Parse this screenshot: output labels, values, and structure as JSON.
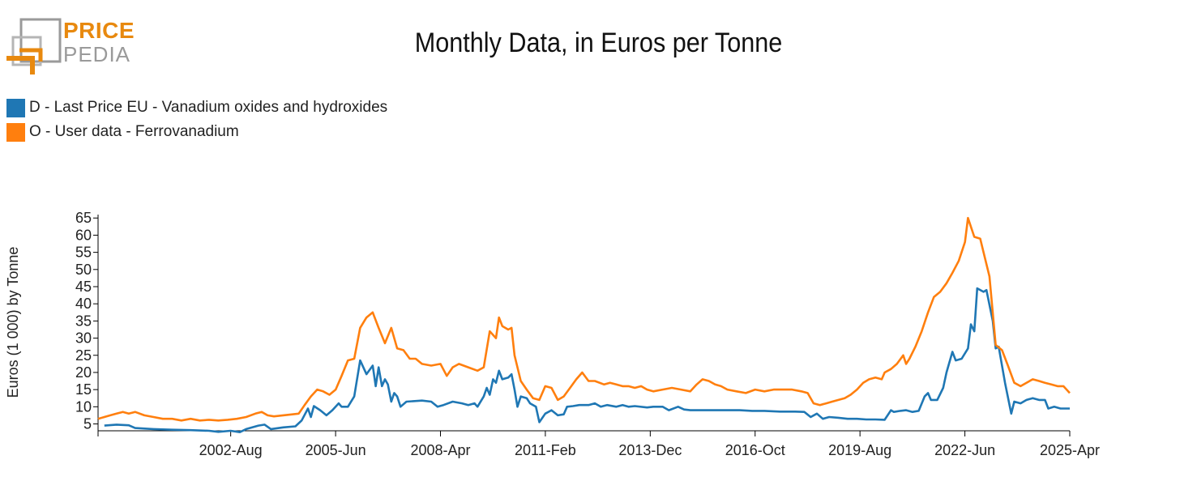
{
  "logo": {
    "line1": "PRICE",
    "line2": "PEDIA"
  },
  "colors": {
    "series_d": "#1f77b4",
    "series_o": "#ff7f0e",
    "logo_orange": "#e8890f",
    "logo_gray": "#9a9a9a"
  },
  "chart_data": {
    "type": "line",
    "title": "Monthly Data, in Euros per Tonne",
    "xlabel": "",
    "ylabel": "Euros (1 000) by Tonne",
    "ylim": [
      3,
      66
    ],
    "yticks": [
      5,
      10,
      15,
      20,
      25,
      30,
      35,
      40,
      45,
      50,
      55,
      60,
      65
    ],
    "xrange": [
      1999,
      2025.25
    ],
    "xticks": [
      {
        "label": "2002-Aug",
        "x": 2002.583
      },
      {
        "label": "2005-Jun",
        "x": 2005.417
      },
      {
        "label": "2008-Apr",
        "x": 2008.25
      },
      {
        "label": "2011-Feb",
        "x": 2011.083
      },
      {
        "label": "2013-Dec",
        "x": 2013.917
      },
      {
        "label": "2016-Oct",
        "x": 2016.75
      },
      {
        "label": "2019-Aug",
        "x": 2019.583
      },
      {
        "label": "2022-Jun",
        "x": 2022.417
      },
      {
        "label": "2025-Apr",
        "x": 2025.25
      }
    ],
    "legend_position": "top-left",
    "series": [
      {
        "name": "D - Last Price EU - Vanadium oxides and hydroxides",
        "color": "#1f77b4",
        "points": [
          [
            1999.17,
            4.5
          ],
          [
            1999.5,
            4.8
          ],
          [
            1999.83,
            4.6
          ],
          [
            2000.0,
            3.8
          ],
          [
            2000.5,
            3.5
          ],
          [
            2001.0,
            3.3
          ],
          [
            2001.5,
            3.2
          ],
          [
            2002.0,
            3.0
          ],
          [
            2002.25,
            2.7
          ],
          [
            2002.58,
            3.0
          ],
          [
            2002.83,
            2.6
          ],
          [
            2003.0,
            3.5
          ],
          [
            2003.33,
            4.5
          ],
          [
            2003.5,
            4.8
          ],
          [
            2003.67,
            3.5
          ],
          [
            2004.0,
            4.0
          ],
          [
            2004.33,
            4.3
          ],
          [
            2004.5,
            6.0
          ],
          [
            2004.67,
            9.5
          ],
          [
            2004.75,
            7.0
          ],
          [
            2004.83,
            10.2
          ],
          [
            2005.0,
            9.0
          ],
          [
            2005.17,
            7.5
          ],
          [
            2005.33,
            9.0
          ],
          [
            2005.5,
            11.0
          ],
          [
            2005.58,
            10.0
          ],
          [
            2005.75,
            10.0
          ],
          [
            2005.92,
            13.0
          ],
          [
            2006.08,
            23.5
          ],
          [
            2006.25,
            19.5
          ],
          [
            2006.42,
            22.0
          ],
          [
            2006.5,
            16.0
          ],
          [
            2006.58,
            21.5
          ],
          [
            2006.67,
            16.0
          ],
          [
            2006.75,
            18.0
          ],
          [
            2006.83,
            16.5
          ],
          [
            2006.92,
            11.5
          ],
          [
            2007.0,
            14.0
          ],
          [
            2007.08,
            13.0
          ],
          [
            2007.17,
            10.0
          ],
          [
            2007.33,
            11.5
          ],
          [
            2007.75,
            11.8
          ],
          [
            2008.0,
            11.5
          ],
          [
            2008.17,
            10.0
          ],
          [
            2008.33,
            10.5
          ],
          [
            2008.58,
            11.5
          ],
          [
            2008.83,
            11.0
          ],
          [
            2009.0,
            10.5
          ],
          [
            2009.17,
            11.0
          ],
          [
            2009.25,
            10.0
          ],
          [
            2009.42,
            13.0
          ],
          [
            2009.5,
            15.5
          ],
          [
            2009.58,
            13.5
          ],
          [
            2009.67,
            18.0
          ],
          [
            2009.75,
            17.0
          ],
          [
            2009.83,
            20.5
          ],
          [
            2009.92,
            18.0
          ],
          [
            2010.08,
            18.5
          ],
          [
            2010.17,
            19.5
          ],
          [
            2010.25,
            15.0
          ],
          [
            2010.33,
            10.0
          ],
          [
            2010.42,
            13.0
          ],
          [
            2010.58,
            12.5
          ],
          [
            2010.67,
            11.0
          ],
          [
            2010.83,
            10.0
          ],
          [
            2010.92,
            5.5
          ],
          [
            2011.08,
            8.0
          ],
          [
            2011.25,
            9.0
          ],
          [
            2011.42,
            7.5
          ],
          [
            2011.58,
            7.8
          ],
          [
            2011.67,
            10.0
          ],
          [
            2011.83,
            10.2
          ],
          [
            2012.0,
            10.5
          ],
          [
            2012.25,
            10.5
          ],
          [
            2012.42,
            11.0
          ],
          [
            2012.58,
            10.0
          ],
          [
            2012.75,
            10.5
          ],
          [
            2013.0,
            10.0
          ],
          [
            2013.17,
            10.5
          ],
          [
            2013.33,
            10.0
          ],
          [
            2013.5,
            10.2
          ],
          [
            2013.83,
            9.8
          ],
          [
            2014.0,
            10.0
          ],
          [
            2014.25,
            10.0
          ],
          [
            2014.42,
            9.0
          ],
          [
            2014.67,
            10.0
          ],
          [
            2014.83,
            9.2
          ],
          [
            2015.0,
            9.0
          ],
          [
            2015.5,
            9.0
          ],
          [
            2016.0,
            9.0
          ],
          [
            2016.33,
            9.0
          ],
          [
            2016.67,
            8.8
          ],
          [
            2017.0,
            8.8
          ],
          [
            2017.42,
            8.6
          ],
          [
            2017.83,
            8.6
          ],
          [
            2018.08,
            8.5
          ],
          [
            2018.25,
            7.0
          ],
          [
            2018.42,
            8.0
          ],
          [
            2018.58,
            6.5
          ],
          [
            2018.75,
            7.0
          ],
          [
            2019.0,
            6.8
          ],
          [
            2019.25,
            6.5
          ],
          [
            2019.5,
            6.5
          ],
          [
            2019.75,
            6.3
          ],
          [
            2020.0,
            6.3
          ],
          [
            2020.25,
            6.2
          ],
          [
            2020.42,
            9.0
          ],
          [
            2020.5,
            8.5
          ],
          [
            2020.67,
            8.8
          ],
          [
            2020.83,
            9.0
          ],
          [
            2021.0,
            8.5
          ],
          [
            2021.17,
            8.8
          ],
          [
            2021.33,
            13.0
          ],
          [
            2021.42,
            14.0
          ],
          [
            2021.5,
            12.0
          ],
          [
            2021.67,
            12.0
          ],
          [
            2021.83,
            15.5
          ],
          [
            2021.92,
            20.0
          ],
          [
            2022.08,
            26.0
          ],
          [
            2022.17,
            23.5
          ],
          [
            2022.33,
            24.0
          ],
          [
            2022.5,
            27.0
          ],
          [
            2022.58,
            34.0
          ],
          [
            2022.67,
            32.0
          ],
          [
            2022.75,
            44.5
          ],
          [
            2022.92,
            43.5
          ],
          [
            2023.0,
            44.0
          ],
          [
            2023.17,
            35.0
          ],
          [
            2023.25,
            27.0
          ],
          [
            2023.33,
            27.5
          ],
          [
            2023.5,
            17.0
          ],
          [
            2023.67,
            8.0
          ],
          [
            2023.75,
            11.5
          ],
          [
            2023.92,
            11.0
          ],
          [
            2024.08,
            12.0
          ],
          [
            2024.25,
            12.5
          ],
          [
            2024.42,
            12.0
          ],
          [
            2024.58,
            12.0
          ],
          [
            2024.67,
            9.5
          ],
          [
            2024.83,
            10.0
          ],
          [
            2025.0,
            9.5
          ],
          [
            2025.25,
            9.5
          ]
        ]
      },
      {
        "name": "O - User data - Ferrovanadium",
        "color": "#ff7f0e",
        "points": [
          [
            1999.0,
            6.5
          ],
          [
            1999.33,
            7.5
          ],
          [
            1999.5,
            8.0
          ],
          [
            1999.67,
            8.5
          ],
          [
            1999.83,
            8.0
          ],
          [
            2000.0,
            8.5
          ],
          [
            2000.25,
            7.5
          ],
          [
            2000.5,
            7.0
          ],
          [
            2000.75,
            6.5
          ],
          [
            2001.0,
            6.5
          ],
          [
            2001.25,
            6.0
          ],
          [
            2001.5,
            6.5
          ],
          [
            2001.75,
            6.0
          ],
          [
            2002.0,
            6.2
          ],
          [
            2002.25,
            6.0
          ],
          [
            2002.5,
            6.2
          ],
          [
            2002.75,
            6.5
          ],
          [
            2003.0,
            7.0
          ],
          [
            2003.25,
            8.0
          ],
          [
            2003.42,
            8.5
          ],
          [
            2003.58,
            7.5
          ],
          [
            2003.75,
            7.2
          ],
          [
            2004.0,
            7.5
          ],
          [
            2004.25,
            7.8
          ],
          [
            2004.42,
            8.0
          ],
          [
            2004.58,
            10.5
          ],
          [
            2004.75,
            13.0
          ],
          [
            2004.92,
            15.0
          ],
          [
            2005.08,
            14.5
          ],
          [
            2005.25,
            13.5
          ],
          [
            2005.42,
            15.0
          ],
          [
            2005.58,
            19.0
          ],
          [
            2005.75,
            23.5
          ],
          [
            2005.92,
            24.0
          ],
          [
            2006.08,
            33.0
          ],
          [
            2006.25,
            36.0
          ],
          [
            2006.42,
            37.5
          ],
          [
            2006.58,
            33.0
          ],
          [
            2006.75,
            28.5
          ],
          [
            2006.92,
            33.0
          ],
          [
            2007.08,
            27.0
          ],
          [
            2007.25,
            26.5
          ],
          [
            2007.42,
            24.0
          ],
          [
            2007.58,
            24.0
          ],
          [
            2007.75,
            22.5
          ],
          [
            2008.0,
            22.0
          ],
          [
            2008.25,
            22.5
          ],
          [
            2008.42,
            19.0
          ],
          [
            2008.58,
            21.5
          ],
          [
            2008.75,
            22.5
          ],
          [
            2009.0,
            21.5
          ],
          [
            2009.25,
            20.5
          ],
          [
            2009.42,
            21.5
          ],
          [
            2009.58,
            32.0
          ],
          [
            2009.75,
            30.0
          ],
          [
            2009.83,
            36.0
          ],
          [
            2009.92,
            33.5
          ],
          [
            2010.08,
            32.5
          ],
          [
            2010.17,
            33.0
          ],
          [
            2010.25,
            25.0
          ],
          [
            2010.42,
            17.5
          ],
          [
            2010.58,
            15.0
          ],
          [
            2010.75,
            12.5
          ],
          [
            2010.92,
            12.0
          ],
          [
            2011.08,
            16.0
          ],
          [
            2011.25,
            15.5
          ],
          [
            2011.42,
            12.0
          ],
          [
            2011.58,
            13.0
          ],
          [
            2011.75,
            15.5
          ],
          [
            2011.92,
            18.0
          ],
          [
            2012.08,
            20.0
          ],
          [
            2012.25,
            17.5
          ],
          [
            2012.42,
            17.5
          ],
          [
            2012.67,
            16.5
          ],
          [
            2012.83,
            17.0
          ],
          [
            2013.0,
            16.5
          ],
          [
            2013.17,
            16.0
          ],
          [
            2013.33,
            16.0
          ],
          [
            2013.5,
            15.5
          ],
          [
            2013.67,
            16.0
          ],
          [
            2013.83,
            15.0
          ],
          [
            2014.0,
            14.5
          ],
          [
            2014.25,
            15.0
          ],
          [
            2014.5,
            15.5
          ],
          [
            2014.75,
            15.0
          ],
          [
            2015.0,
            14.5
          ],
          [
            2015.17,
            16.5
          ],
          [
            2015.33,
            18.0
          ],
          [
            2015.5,
            17.5
          ],
          [
            2015.67,
            16.5
          ],
          [
            2015.83,
            16.0
          ],
          [
            2016.0,
            15.0
          ],
          [
            2016.25,
            14.5
          ],
          [
            2016.5,
            14.0
          ],
          [
            2016.75,
            15.0
          ],
          [
            2017.0,
            14.5
          ],
          [
            2017.25,
            15.0
          ],
          [
            2017.5,
            15.0
          ],
          [
            2017.75,
            15.0
          ],
          [
            2018.0,
            14.5
          ],
          [
            2018.17,
            14.0
          ],
          [
            2018.33,
            11.0
          ],
          [
            2018.5,
            10.5
          ],
          [
            2018.67,
            11.0
          ],
          [
            2018.83,
            11.5
          ],
          [
            2019.0,
            12.0
          ],
          [
            2019.17,
            12.5
          ],
          [
            2019.33,
            13.5
          ],
          [
            2019.5,
            15.0
          ],
          [
            2019.67,
            17.0
          ],
          [
            2019.83,
            18.0
          ],
          [
            2020.0,
            18.5
          ],
          [
            2020.17,
            18.0
          ],
          [
            2020.25,
            20.0
          ],
          [
            2020.42,
            21.0
          ],
          [
            2020.58,
            22.5
          ],
          [
            2020.75,
            25.0
          ],
          [
            2020.83,
            22.5
          ],
          [
            2020.92,
            24.0
          ],
          [
            2021.08,
            27.5
          ],
          [
            2021.25,
            32.0
          ],
          [
            2021.42,
            37.5
          ],
          [
            2021.58,
            42.0
          ],
          [
            2021.75,
            43.5
          ],
          [
            2021.92,
            46.0
          ],
          [
            2022.08,
            49.0
          ],
          [
            2022.25,
            52.5
          ],
          [
            2022.42,
            58.0
          ],
          [
            2022.5,
            65.0
          ],
          [
            2022.67,
            59.5
          ],
          [
            2022.83,
            59.0
          ],
          [
            2022.92,
            55.0
          ],
          [
            2023.08,
            48.0
          ],
          [
            2023.25,
            28.0
          ],
          [
            2023.42,
            26.5
          ],
          [
            2023.58,
            22.0
          ],
          [
            2023.75,
            17.0
          ],
          [
            2023.92,
            16.0
          ],
          [
            2024.08,
            17.0
          ],
          [
            2024.25,
            18.0
          ],
          [
            2024.42,
            17.5
          ],
          [
            2024.58,
            17.0
          ],
          [
            2024.75,
            16.5
          ],
          [
            2024.92,
            16.0
          ],
          [
            2025.08,
            16.0
          ],
          [
            2025.25,
            14.0
          ]
        ]
      }
    ]
  }
}
